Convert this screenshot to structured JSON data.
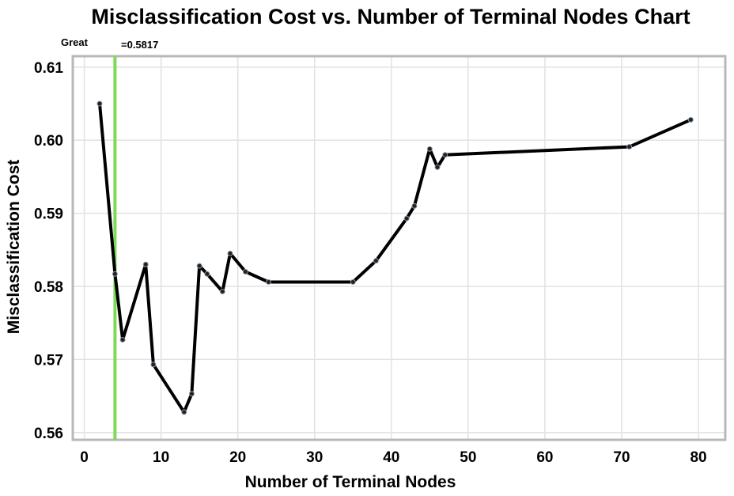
{
  "chart_data": {
    "type": "line",
    "title": "Misclassification Cost vs. Number of Terminal Nodes Chart",
    "xlabel": "Number of Terminal Nodes",
    "ylabel": "Misclassification Cost",
    "xlim": [
      -1.5,
      83.5
    ],
    "ylim": [
      0.559,
      0.6115
    ],
    "xticks": [
      0,
      10,
      20,
      30,
      40,
      50,
      60,
      70,
      80
    ],
    "yticks": [
      0.56,
      0.57,
      0.58,
      0.59,
      0.6,
      0.61
    ],
    "ytick_labels": [
      "0.56",
      "0.57",
      "0.58",
      "0.59",
      "0.60",
      "0.61"
    ],
    "grid": true,
    "series": [
      {
        "x": [
          2,
          4,
          5,
          8,
          9,
          13,
          14,
          15,
          16,
          18,
          19,
          21,
          24,
          35,
          38,
          42,
          43,
          45,
          46,
          47,
          71,
          79
        ],
        "y": [
          0.605,
          0.5817,
          0.5727,
          0.583,
          0.5693,
          0.5628,
          0.5653,
          0.5828,
          0.5817,
          0.5793,
          0.5845,
          0.582,
          0.5806,
          0.5806,
          0.5835,
          0.5893,
          0.591,
          0.5988,
          0.5963,
          0.598,
          0.5991,
          0.6028
        ]
      }
    ],
    "marker": {
      "x": 4,
      "color": "#7ed957",
      "label_left": "Great",
      "label_right": "=0.5817"
    }
  }
}
